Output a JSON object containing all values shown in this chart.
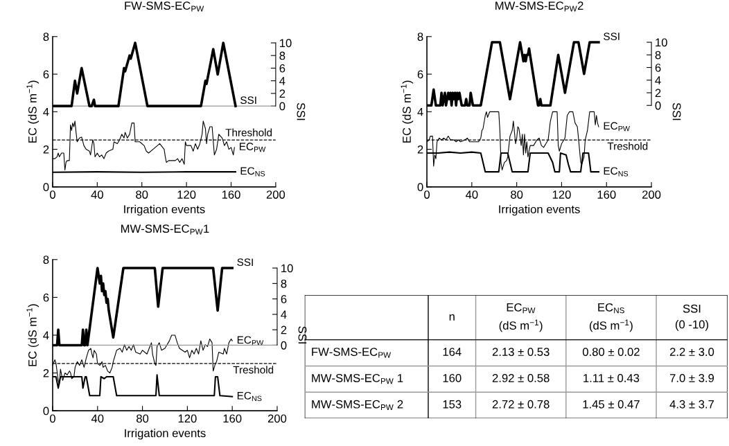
{
  "chart_data": [
    {
      "type": "line",
      "title": "FW-SMS-EC$_{PW}$",
      "xlabel": "Irrigation events",
      "ylabel": "EC (dS m$^{−1}$)",
      "y2label": "SSI",
      "xlim": [
        0,
        200
      ],
      "xticks": [
        0,
        40,
        80,
        120,
        160,
        200
      ],
      "ylim": [
        0,
        8
      ],
      "yticks": [
        0,
        2,
        4,
        6,
        8
      ],
      "y2lim": [
        -12.8,
        11.0
      ],
      "y2ticks": [
        0,
        2,
        4,
        6,
        8,
        10
      ],
      "grid": false,
      "ref_lines": [
        {
          "axis": "y",
          "value": 2.5,
          "label": "Threshold",
          "color": "#000000",
          "line_style": "dashed"
        },
        {
          "axis": "y2",
          "value": 0,
          "color": "#999999",
          "line_style": "solid"
        }
      ],
      "series": [
        {
          "name": "SSI",
          "color": "#000000",
          "axis": "y2",
          "x": [
            0,
            17,
            20,
            22,
            26,
            33,
            35,
            37,
            38,
            59,
            64,
            65,
            69,
            70,
            74,
            85,
            133,
            137,
            138,
            144,
            148,
            153,
            164
          ],
          "values": [
            0,
            0,
            4,
            2,
            6,
            0,
            0,
            1,
            0,
            0,
            6,
            5.5,
            8,
            7.5,
            10,
            0,
            0,
            4,
            3.5,
            9,
            5,
            10,
            0
          ]
        },
        {
          "name": "EC$_{PW}$",
          "color": "#000000",
          "x": [
            0,
            2,
            4,
            5,
            6,
            8,
            10,
            11,
            12,
            13,
            15,
            16,
            17,
            18,
            19,
            20,
            21,
            22,
            24,
            26,
            28,
            30,
            33,
            34,
            36,
            37,
            38,
            40,
            42,
            44,
            46,
            48,
            50,
            54,
            55,
            58,
            60,
            62,
            64,
            65,
            67,
            69,
            71,
            73,
            74,
            78,
            82,
            84,
            86,
            90,
            94,
            96,
            100,
            101,
            102,
            104,
            110,
            112,
            114,
            116,
            118,
            119,
            120,
            124,
            126,
            128,
            130,
            132,
            134,
            135,
            137,
            138,
            139,
            141,
            143,
            145,
            147,
            149,
            152,
            154,
            156,
            158,
            160,
            162,
            163
          ],
          "values": [
            1.5,
            1.5,
            1.6,
            1.8,
            1.6,
            1.8,
            1.8,
            0.9,
            1.3,
            1.4,
            1.4,
            3.3,
            3.0,
            3.4,
            3.2,
            3.5,
            2.9,
            2.4,
            2.6,
            2.65,
            2.2,
            2.0,
            1.9,
            1.7,
            2.5,
            2.3,
            1.6,
            1.8,
            1.6,
            1.7,
            1.5,
            1.8,
            1.9,
            2.0,
            2.4,
            2.3,
            2.5,
            2.8,
            2.6,
            2.9,
            2.6,
            2.8,
            3.4,
            3.4,
            2.4,
            2.4,
            2.2,
            1.9,
            1.8,
            2.0,
            2.2,
            2.3,
            2.0,
            1.6,
            1.3,
            1.4,
            1.4,
            1.5,
            1.3,
            1.5,
            1.2,
            2.4,
            2.2,
            2.2,
            1.9,
            2.3,
            2.0,
            2.3,
            2.8,
            3.5,
            3.1,
            2.3,
            2.8,
            3.2,
            3.2,
            1.7,
            2.0,
            2.8,
            2.6,
            2.2,
            2.4,
            2.0,
            2.1,
            1.7,
            2.1
          ]
        },
        {
          "name": "EC$_{NS}$",
          "color": "#000000",
          "x": [
            0,
            40,
            80,
            120,
            164
          ],
          "values": [
            0.78,
            0.8,
            0.78,
            0.8,
            0.8
          ]
        }
      ]
    },
    {
      "type": "line",
      "title": "MW-SMS-EC$_{PW}$2",
      "xlabel": "Irrigation events",
      "ylabel": "EC (dS m$^{−1}$)",
      "y2label": "SSI",
      "xlim": [
        0,
        200
      ],
      "xticks": [
        0,
        40,
        80,
        120,
        160,
        200
      ],
      "ylim": [
        0,
        8
      ],
      "yticks": [
        0,
        2,
        4,
        6,
        8
      ],
      "y2lim": [
        -12.9,
        10.9
      ],
      "y2ticks": [
        0,
        2,
        4,
        6,
        8,
        10
      ],
      "grid": false,
      "ref_lines": [
        {
          "axis": "y",
          "value": 2.5,
          "label": "Treshold",
          "color": "#000000",
          "line_style": "dashed"
        }
      ],
      "series": [
        {
          "name": "SSI",
          "color": "#000000",
          "axis": "y2",
          "x": [
            0,
            4,
            6,
            8,
            12,
            13,
            14,
            16,
            17,
            19,
            20,
            21,
            22,
            23,
            24,
            25,
            26,
            27,
            28,
            29,
            31,
            34,
            35,
            36,
            38,
            39,
            41,
            48,
            58,
            65,
            74,
            83,
            85,
            86,
            87,
            88,
            89,
            90,
            91,
            99,
            100,
            101,
            102,
            110,
            117,
            123,
            131,
            135,
            140,
            145,
            153
          ],
          "values": [
            0,
            0,
            2.5,
            0,
            0,
            2,
            0,
            2,
            0,
            2,
            1,
            2,
            0,
            2,
            1,
            2,
            0,
            2,
            1,
            2,
            0,
            0,
            1,
            0,
            0,
            2,
            0,
            0,
            10,
            10,
            1,
            10,
            8,
            7,
            8,
            7,
            8,
            8,
            9,
            0,
            0,
            1,
            0,
            0,
            8,
            2,
            10,
            10,
            5,
            10,
            10
          ]
        },
        {
          "name": "EC$_{PW}$",
          "color": "#000000",
          "x": [
            0,
            2,
            3,
            5,
            6,
            7,
            8,
            9,
            11,
            13,
            15,
            17,
            19,
            21,
            24,
            26,
            28,
            30,
            34,
            36,
            38,
            42,
            46,
            48,
            49,
            50,
            52,
            53,
            54,
            56,
            64,
            65,
            66,
            67,
            69,
            71,
            72,
            74,
            76,
            77,
            79,
            80,
            81,
            82,
            84,
            85,
            86,
            87,
            88,
            89,
            90,
            92,
            95,
            98,
            100,
            102,
            104,
            106,
            108,
            110,
            112,
            116,
            117,
            118,
            120,
            123,
            125,
            127,
            130,
            132,
            134,
            135,
            137,
            138,
            140,
            141,
            143,
            145,
            149,
            150,
            151,
            152,
            153
          ],
          "values": [
            2.4,
            2.5,
            2.7,
            2.7,
            1.1,
            1.7,
            1.5,
            2.4,
            2.6,
            2.5,
            2.6,
            2.5,
            2.7,
            2.5,
            2.5,
            2.4,
            2.5,
            2.4,
            2.5,
            2.6,
            2.4,
            2.4,
            2.4,
            2.6,
            3.0,
            3.1,
            3.8,
            4.0,
            3.7,
            4.0,
            4.0,
            3.0,
            1.3,
            0.9,
            1.3,
            1.4,
            1.6,
            2.7,
            3.0,
            3.5,
            2.3,
            2.6,
            3.2,
            3.1,
            2.2,
            2.8,
            1.7,
            2.8,
            1.8,
            2.4,
            1.6,
            2.2,
            2.2,
            2.5,
            2.6,
            2.2,
            2.1,
            2.3,
            2.5,
            3.5,
            4.0,
            4.0,
            2.2,
            1.9,
            2.3,
            2.6,
            3.8,
            4.0,
            4.0,
            3.4,
            3.2,
            2.6,
            1.3,
            1.2,
            1.6,
            2.5,
            3.0,
            4.0,
            4.0,
            3.3,
            3.8,
            3.4,
            3.2
          ]
        },
        {
          "name": "EC$_{NS}$",
          "color": "#000000",
          "x": [
            0,
            10,
            20,
            30,
            40,
            48,
            52,
            64,
            66,
            72,
            74,
            76,
            86,
            90,
            92,
            108,
            112,
            114,
            118,
            119,
            124,
            126,
            128,
            137,
            139,
            144,
            146,
            153
          ],
          "values": [
            1.8,
            1.8,
            1.85,
            1.8,
            1.85,
            1.8,
            0.8,
            0.8,
            1.8,
            1.8,
            1.3,
            0.8,
            0.8,
            0.8,
            1.8,
            1.8,
            1.3,
            0.8,
            0.8,
            1.8,
            1.7,
            1.2,
            0.8,
            0.8,
            1.8,
            1.8,
            0.8,
            0.8
          ]
        }
      ]
    },
    {
      "type": "line",
      "title": "MW-SMS-EC$_{PW}$1",
      "xlabel": "Irrigation events",
      "ylabel": "EC (dS m$^{−1}$)",
      "y2label": "SSI",
      "xlim": [
        0,
        200
      ],
      "xticks": [
        0,
        40,
        80,
        120,
        160,
        200
      ],
      "ylim": [
        0,
        8
      ],
      "yticks": [
        0,
        2,
        4,
        6,
        8
      ],
      "y2lim": [
        -8.5,
        11.1
      ],
      "y2ticks": [
        0,
        2,
        4,
        6,
        8,
        10
      ],
      "grid": false,
      "ref_lines": [
        {
          "axis": "y",
          "value": 2.5,
          "label": "Treshold",
          "color": "#000000",
          "line_style": "dashed"
        },
        {
          "axis": "y2",
          "value": 0,
          "color": "#999999",
          "line_style": "solid"
        }
      ],
      "series": [
        {
          "name": "SSI",
          "color": "#000000",
          "axis": "y2",
          "x": [
            0,
            4,
            5,
            6,
            26,
            27,
            28,
            29,
            30,
            31,
            40,
            42,
            43,
            44,
            45,
            46,
            47,
            48,
            49,
            50,
            54,
            63,
            91,
            94,
            98,
            143,
            147,
            151,
            160
          ],
          "values": [
            0,
            0,
            2,
            0,
            0,
            2,
            0,
            0,
            2,
            0,
            10,
            8,
            9,
            7,
            8,
            6.5,
            7,
            5.5,
            6,
            4.5,
            1,
            10,
            10,
            5,
            10,
            10,
            4.5,
            10,
            10
          ]
        },
        {
          "name": "EC$_{PW}$",
          "color": "#000000",
          "x": [
            0,
            2,
            3,
            5,
            6,
            7,
            8,
            9,
            11,
            13,
            15,
            16,
            17,
            19,
            20,
            22,
            24,
            26,
            27,
            28,
            30,
            32,
            34,
            35,
            36,
            37,
            39,
            40,
            42,
            44,
            45,
            47,
            49,
            51,
            53,
            54,
            57,
            60,
            62,
            64,
            66,
            68,
            70,
            72,
            74,
            78,
            80,
            84,
            86,
            88,
            89,
            91,
            92,
            93,
            95,
            97,
            100,
            104,
            106,
            109,
            111,
            113,
            118,
            120,
            122,
            124,
            126,
            128,
            130,
            132,
            134,
            136,
            138,
            140,
            142,
            143,
            145,
            146,
            148,
            152,
            153,
            155,
            157,
            159,
            160
          ],
          "values": [
            2.4,
            2.7,
            2.5,
            1.6,
            1.4,
            2.2,
            1.9,
            1.6,
            2.0,
            1.9,
            2.1,
            2.0,
            1.7,
            1.8,
            2.3,
            2.6,
            2.4,
            2.7,
            2.5,
            2.3,
            2.8,
            3.2,
            3.3,
            3.0,
            2.8,
            3.2,
            3.0,
            2.5,
            2.4,
            2.6,
            2.3,
            2.4,
            2.1,
            2.0,
            2.3,
            2.6,
            3.2,
            3.3,
            3.1,
            3.5,
            3.2,
            3.4,
            3.2,
            3.5,
            3.1,
            3.0,
            3.2,
            3.0,
            3.3,
            3.6,
            3.0,
            2.5,
            2.4,
            3.4,
            3.6,
            3.2,
            3.3,
            3.7,
            4.0,
            4.0,
            3.6,
            3.3,
            3.1,
            3.2,
            2.8,
            3.2,
            3.0,
            3.3,
            3.0,
            3.7,
            3.2,
            3.5,
            3.4,
            3.8,
            3.6,
            2.1,
            2.5,
            2.6,
            3.1,
            3.0,
            3.3,
            3.0,
            3.6,
            3.8,
            3.7
          ]
        },
        {
          "name": "EC$_{NS}$",
          "color": "#000000",
          "x": [
            0,
            3,
            5,
            7,
            26,
            27,
            29,
            30,
            33,
            42,
            43,
            46,
            48,
            54,
            57,
            92,
            93,
            95,
            144,
            145,
            147,
            149,
            160
          ],
          "values": [
            1.8,
            1.8,
            1.2,
            1.8,
            1.8,
            1.2,
            1.8,
            1.8,
            0.8,
            0.8,
            1.8,
            1.7,
            1.8,
            1.8,
            0.8,
            0.8,
            1.9,
            0.8,
            0.8,
            1.8,
            1.8,
            0.8,
            0.75
          ]
        }
      ]
    },
    {
      "type": "other",
      "categories": [
        null,
        "n",
        "EC$_{PW}$\n(dS m$^{−1}$)",
        "EC$_{NS}$\n(dS m$^{−1}$)",
        "SSI\n(0 -10)"
      ],
      "y_categories": [
        "FW-SMS-EC$_{PW}$",
        "MW-SMS-EC$_{PW}$ 1",
        "MW-SMS-EC$_{PW}$ 2"
      ],
      "cell_labels": [
        [
          "164",
          "2.13 ± 0.53",
          "0.80 ± 0.02",
          "2.2 ± 3.0"
        ],
        [
          "160",
          "2.92 ± 0.58",
          "1.11 ± 0.43",
          "7.0 ± 3.9"
        ],
        [
          "153",
          "2.72 ± 0.78",
          "1.45 ± 0.47",
          "4.3 ± 3.7"
        ]
      ]
    }
  ]
}
